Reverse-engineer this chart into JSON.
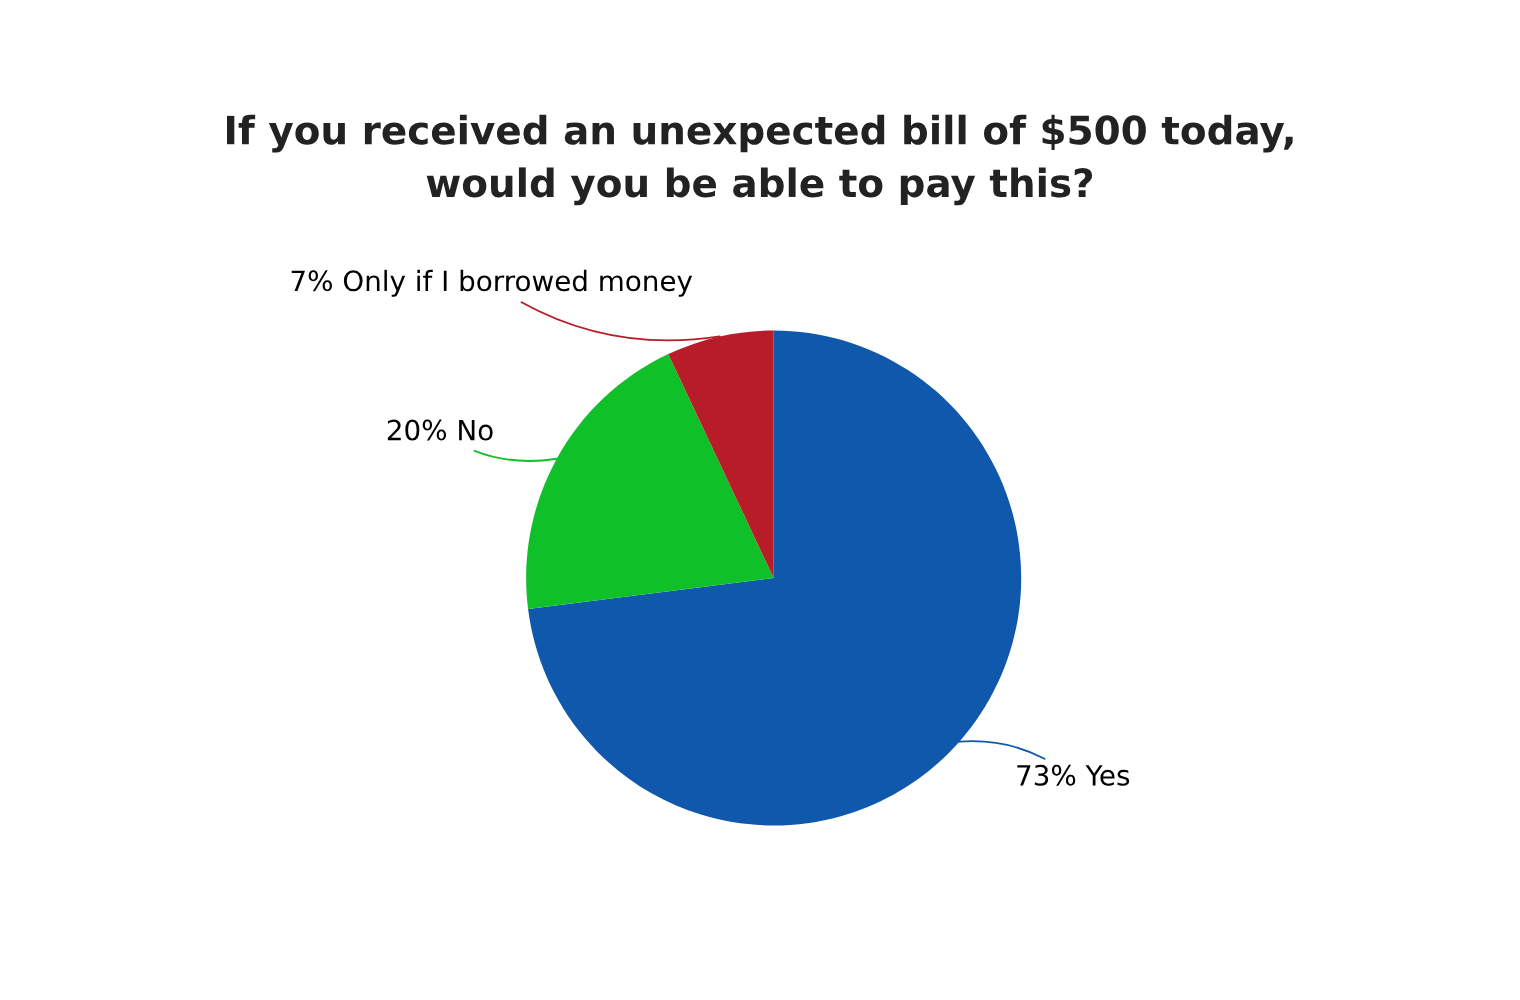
{
  "chart_data": {
    "type": "pie",
    "title": "If you received an unexpected bill of $500 today,\nwould you be able to pay this?",
    "categories": [
      "Yes",
      "No",
      "Only if I borrowed money"
    ],
    "values": [
      73,
      20,
      7
    ],
    "value_labels": [
      "73%",
      "20%",
      "7%"
    ],
    "colors": [
      "#1058ab",
      "#10c028",
      "#b71c28"
    ],
    "legend": false
  }
}
